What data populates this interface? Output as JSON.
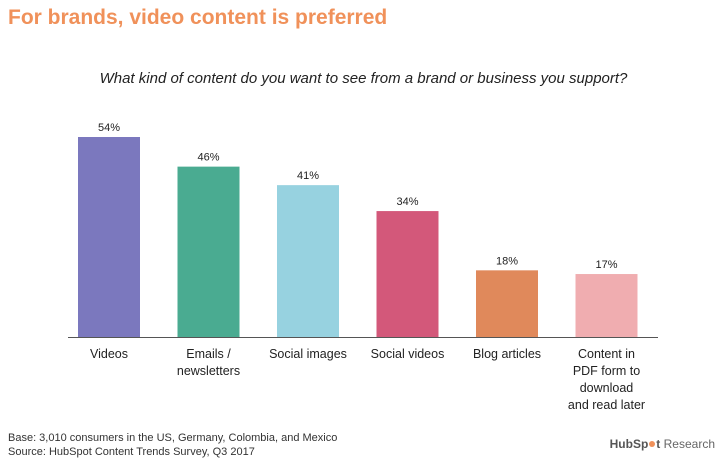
{
  "headline": "For brands, video content is preferred",
  "question": "What kind of content do you want to see from a brand or business you support?",
  "footnotes": {
    "base": "Base: 3,010 consumers in the US, Germany, Colombia, and Mexico",
    "source": "Source: HubSpot Content Trends Survey, Q3 2017"
  },
  "brand": {
    "name": "HubSpot",
    "suffix": "Research",
    "accent": "#F0915A"
  },
  "colors": {
    "headline": "#F0915A",
    "bars": [
      "#7B78BE",
      "#4AAB91",
      "#97D2E0",
      "#D3587A",
      "#E0895B",
      "#F0ADB0"
    ]
  },
  "chart_data": {
    "type": "bar",
    "categories": [
      "Videos",
      "Emails /\nnewsletters",
      "Social images",
      "Social videos",
      "Blog articles",
      "Content in\nPDF form to\ndownload\nand read later"
    ],
    "values": [
      54,
      46,
      41,
      34,
      18,
      17
    ],
    "value_labels": [
      "54%",
      "46%",
      "41%",
      "34%",
      "18%",
      "17%"
    ],
    "title": "What kind of content do you want to see from a brand or business you support?",
    "xlabel": "",
    "ylabel": "",
    "ylim": [
      0,
      54
    ],
    "grid": false,
    "legend": "none"
  }
}
